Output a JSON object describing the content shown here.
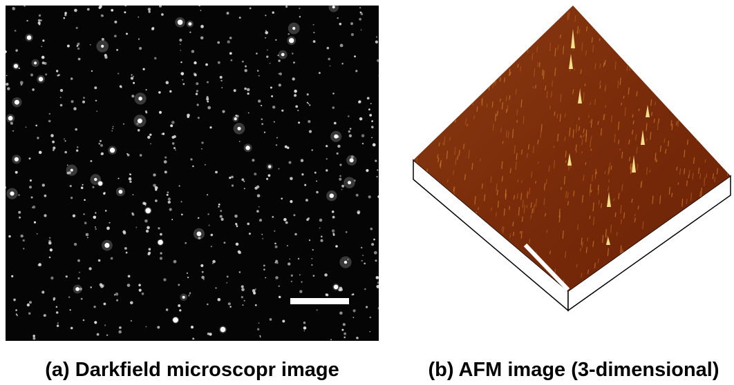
{
  "panels": [
    {
      "caption": "(a) Darkfield microscopr image"
    },
    {
      "caption": "(b) AFM image (3-dimensional)"
    }
  ]
}
